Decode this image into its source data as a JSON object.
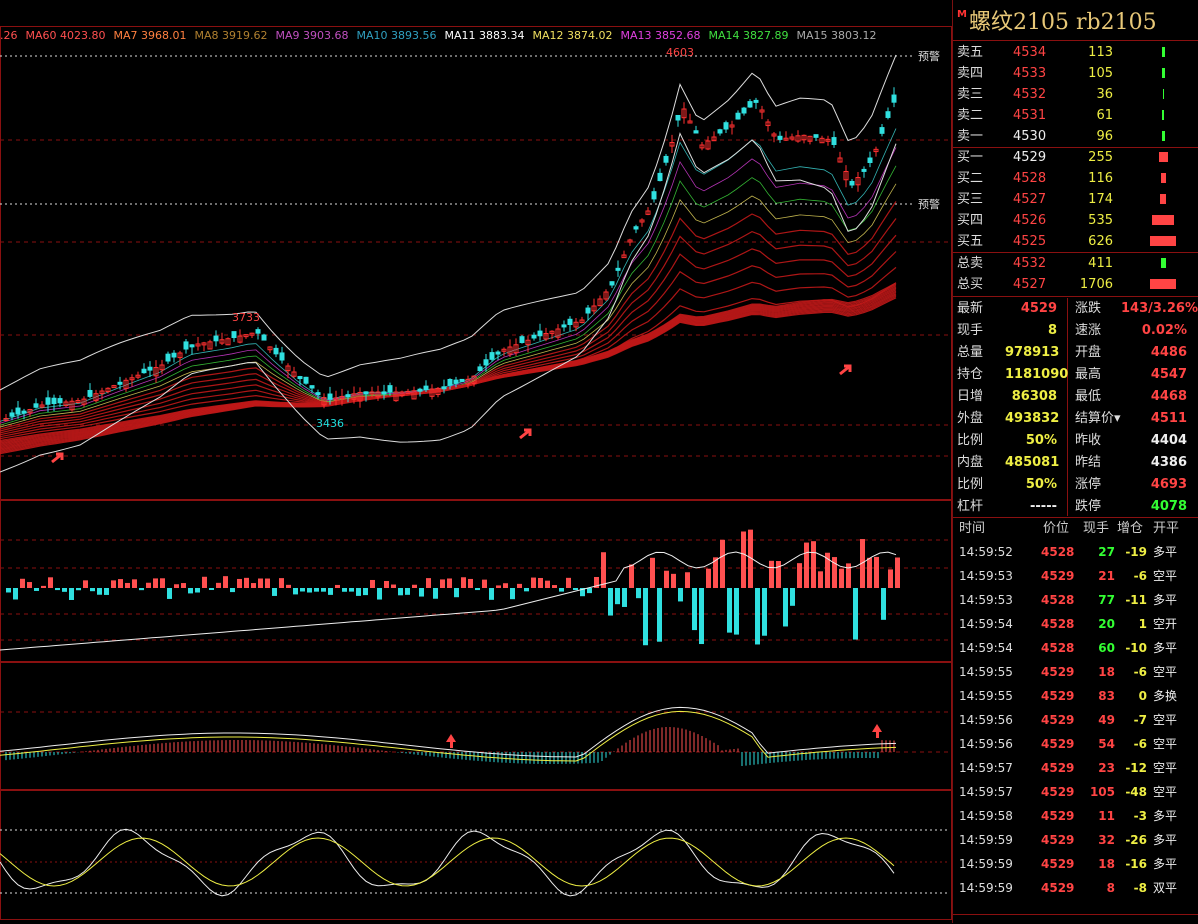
{
  "ma_legend": [
    {
      "text": ".26",
      "color": "#ff5050"
    },
    {
      "text": "MA60 4023.80",
      "color": "#ff5050"
    },
    {
      "text": "MA7 3968.01",
      "color": "#ff8040"
    },
    {
      "text": "MA8 3919.62",
      "color": "#b08030"
    },
    {
      "text": "MA9 3903.68",
      "color": "#c050c0"
    },
    {
      "text": "MA10 3893.56",
      "color": "#30a0c0"
    },
    {
      "text": "MA11 3883.34",
      "color": "#ffffff"
    },
    {
      "text": "MA12 3874.02",
      "color": "#f0e060"
    },
    {
      "text": "MA13 3852.68",
      "color": "#e040e0"
    },
    {
      "text": "MA14 3827.89",
      "color": "#40e040"
    },
    {
      "text": "MA15 3803.12",
      "color": "#aaaaaa"
    }
  ],
  "chart_labels": {
    "high": "4603",
    "mid_high": "3733",
    "mid_low": "3436",
    "alert1": "预警",
    "alert2": "预警"
  },
  "panel": {
    "marker": "M",
    "title": "螺纹2105  rb2105",
    "sells": [
      {
        "label": "卖五",
        "price": "4534",
        "vol": "113",
        "bar": 3
      },
      {
        "label": "卖四",
        "price": "4533",
        "vol": "105",
        "bar": 3
      },
      {
        "label": "卖三",
        "price": "4532",
        "vol": "36",
        "bar": 1
      },
      {
        "label": "卖二",
        "price": "4531",
        "vol": "61",
        "bar": 2
      },
      {
        "label": "卖一",
        "price": "4530",
        "vol": "96",
        "bar": 3
      }
    ],
    "buys": [
      {
        "label": "买一",
        "price": "4529",
        "vol": "255",
        "bar": 9
      },
      {
        "label": "买二",
        "price": "4528",
        "vol": "116",
        "bar": 5
      },
      {
        "label": "买三",
        "price": "4527",
        "vol": "174",
        "bar": 6
      },
      {
        "label": "买四",
        "price": "4526",
        "vol": "535",
        "bar": 22
      },
      {
        "label": "买五",
        "price": "4525",
        "vol": "626",
        "bar": 26
      }
    ],
    "totals": [
      {
        "label": "总卖",
        "price": "4532",
        "vol": "411",
        "bar": 5,
        "color": "#3f3"
      },
      {
        "label": "总买",
        "price": "4527",
        "vol": "1706",
        "bar": 26,
        "color": "#f44"
      }
    ],
    "quote_left": [
      {
        "k": "最新",
        "v": "4529",
        "c": "red"
      },
      {
        "k": "现手",
        "v": "8",
        "c": "yellow"
      },
      {
        "k": "总量",
        "v": "978913",
        "c": "yellow"
      },
      {
        "k": "持仓",
        "v": "1181090",
        "c": "yellow"
      },
      {
        "k": "日增",
        "v": "86308",
        "c": "yellow"
      },
      {
        "k": "外盘",
        "v": "493832",
        "c": "yellow"
      },
      {
        "k": "比例",
        "v": "50%",
        "c": "yellow"
      },
      {
        "k": "内盘",
        "v": "485081",
        "c": "yellow"
      },
      {
        "k": "比例",
        "v": "50%",
        "c": "yellow"
      },
      {
        "k": "杠杆",
        "v": "-----",
        "c": "white"
      }
    ],
    "quote_right": [
      {
        "k": "涨跌",
        "v": "143/3.26%",
        "c": "red"
      },
      {
        "k": "速涨",
        "v": "0.02%",
        "c": "red"
      },
      {
        "k": "开盘",
        "v": "4486",
        "c": "red"
      },
      {
        "k": "最高",
        "v": "4547",
        "c": "red"
      },
      {
        "k": "最低",
        "v": "4468",
        "c": "red"
      },
      {
        "k": "结算价▾",
        "v": "4511",
        "c": "red"
      },
      {
        "k": "昨收",
        "v": "4404",
        "c": "white"
      },
      {
        "k": "昨结",
        "v": "4386",
        "c": "white"
      },
      {
        "k": "涨停",
        "v": "4693",
        "c": "red"
      },
      {
        "k": "跌停",
        "v": "4078",
        "c": "green"
      }
    ],
    "tick_header": {
      "time": "时间",
      "price": "价位",
      "hand": "现手",
      "oi": "增仓",
      "type": "开平"
    },
    "ticks": [
      {
        "time": "14:59:52",
        "price": "4528",
        "hand": "27",
        "hc": "green",
        "oi": "-19",
        "oc": "yellow",
        "type": "多平"
      },
      {
        "time": "14:59:53",
        "price": "4529",
        "hand": "21",
        "hc": "red",
        "oi": "-6",
        "oc": "yellow",
        "type": "空平"
      },
      {
        "time": "14:59:53",
        "price": "4528",
        "hand": "77",
        "hc": "green",
        "oi": "-11",
        "oc": "yellow",
        "type": "多平"
      },
      {
        "time": "14:59:54",
        "price": "4528",
        "hand": "20",
        "hc": "green",
        "oi": "1",
        "oc": "yellow",
        "type": "空开"
      },
      {
        "time": "14:59:54",
        "price": "4528",
        "hand": "60",
        "hc": "green",
        "oi": "-10",
        "oc": "yellow",
        "type": "多平"
      },
      {
        "time": "14:59:55",
        "price": "4529",
        "hand": "18",
        "hc": "red",
        "oi": "-6",
        "oc": "yellow",
        "type": "空平"
      },
      {
        "time": "14:59:55",
        "price": "4529",
        "hand": "83",
        "hc": "red",
        "oi": "0",
        "oc": "yellow",
        "type": "多换"
      },
      {
        "time": "14:59:56",
        "price": "4529",
        "hand": "49",
        "hc": "red",
        "oi": "-7",
        "oc": "yellow",
        "type": "空平"
      },
      {
        "time": "14:59:56",
        "price": "4529",
        "hand": "54",
        "hc": "red",
        "oi": "-6",
        "oc": "yellow",
        "type": "空平"
      },
      {
        "time": "14:59:57",
        "price": "4529",
        "hand": "23",
        "hc": "red",
        "oi": "-12",
        "oc": "yellow",
        "type": "空平"
      },
      {
        "time": "14:59:57",
        "price": "4529",
        "hand": "105",
        "hc": "red",
        "oi": "-48",
        "oc": "yellow",
        "type": "空平"
      },
      {
        "time": "14:59:58",
        "price": "4529",
        "hand": "11",
        "hc": "red",
        "oi": "-3",
        "oc": "yellow",
        "type": "多平"
      },
      {
        "time": "14:59:59",
        "price": "4529",
        "hand": "32",
        "hc": "red",
        "oi": "-26",
        "oc": "yellow",
        "type": "多平"
      },
      {
        "time": "14:59:59",
        "price": "4529",
        "hand": "18",
        "hc": "red",
        "oi": "-16",
        "oc": "yellow",
        "type": "多平"
      },
      {
        "time": "14:59:59",
        "price": "4529",
        "hand": "8",
        "hc": "red",
        "oi": "-8",
        "oc": "yellow",
        "type": "双平"
      }
    ]
  },
  "colors": {
    "up": "#ff3030",
    "down": "#30e0e0",
    "grid": "#8a1010",
    "ma": "#c01818"
  }
}
